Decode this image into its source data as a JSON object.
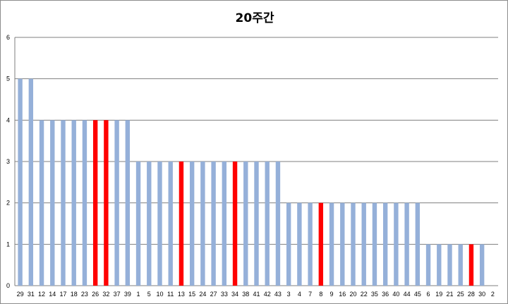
{
  "chart_data": {
    "type": "bar",
    "title": "20주간",
    "xlabel": "",
    "ylabel": "",
    "ylim": [
      0,
      6
    ],
    "yticks": [
      0,
      1,
      2,
      3,
      4,
      5,
      6
    ],
    "grid": true,
    "legend": "none",
    "categories": [
      "29",
      "31",
      "12",
      "14",
      "17",
      "18",
      "23",
      "26",
      "32",
      "37",
      "39",
      "1",
      "5",
      "10",
      "11",
      "13",
      "15",
      "24",
      "27",
      "33",
      "34",
      "38",
      "41",
      "42",
      "43",
      "3",
      "4",
      "7",
      "8",
      "9",
      "16",
      "20",
      "22",
      "35",
      "36",
      "40",
      "44",
      "45",
      "6",
      "19",
      "21",
      "25",
      "28",
      "30",
      "2"
    ],
    "values": [
      5,
      5,
      4,
      4,
      4,
      4,
      4,
      4,
      4,
      4,
      4,
      3,
      3,
      3,
      3,
      3,
      3,
      3,
      3,
      3,
      3,
      3,
      3,
      3,
      3,
      2,
      2,
      2,
      2,
      2,
      2,
      2,
      2,
      2,
      2,
      2,
      2,
      2,
      1,
      1,
      1,
      1,
      1,
      1,
      0
    ],
    "highlighted": [
      "26",
      "32",
      "13",
      "34",
      "8",
      "28"
    ],
    "colors": {
      "bar": "#95b0d9",
      "highlight": "#ff0000",
      "grid": "#7f7f7f"
    }
  }
}
